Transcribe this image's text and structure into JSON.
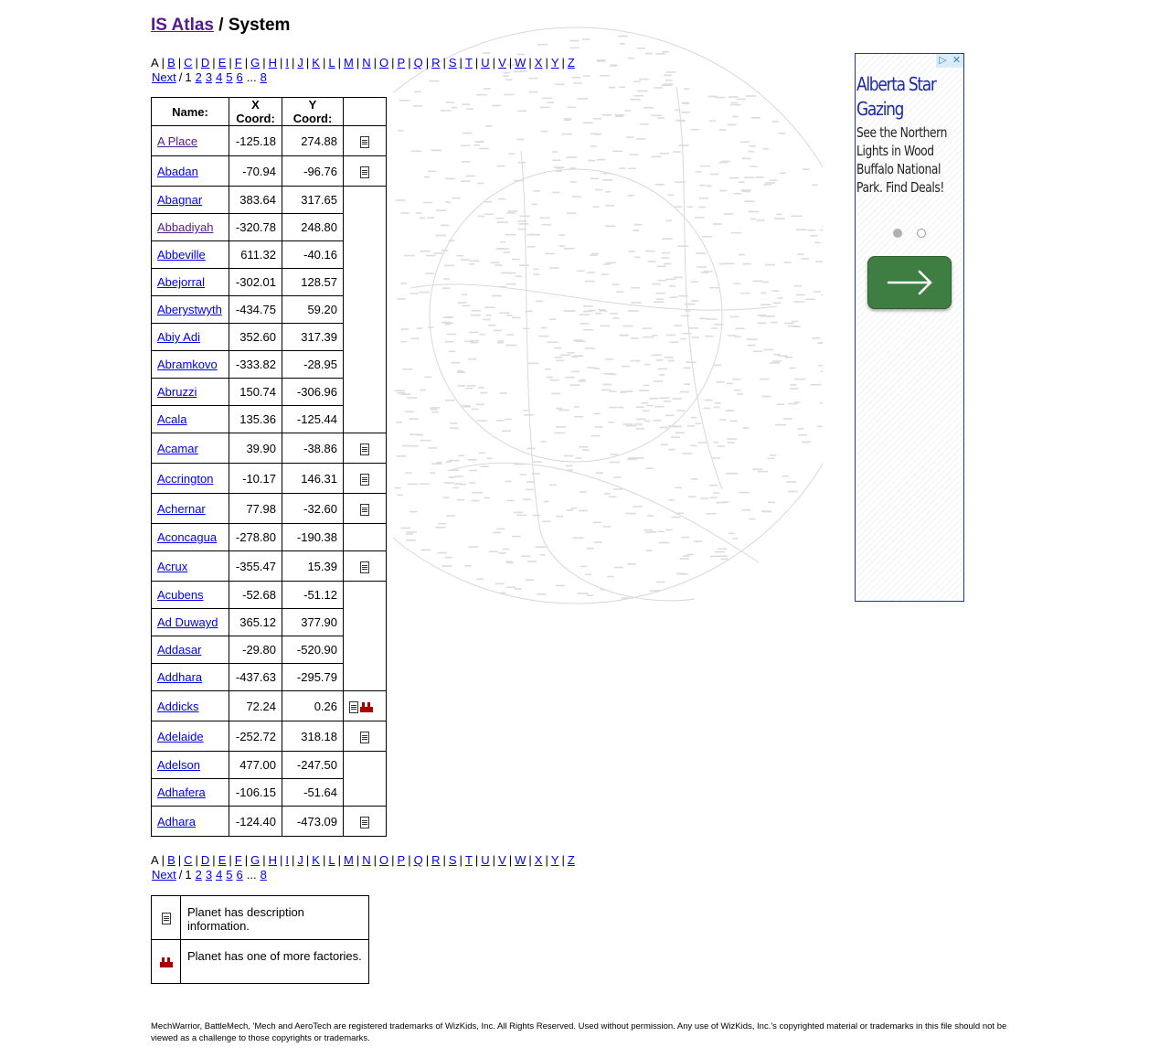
{
  "header": {
    "site_link": "IS Atlas",
    "separator": "/",
    "page": "System"
  },
  "letters": [
    "A",
    "B",
    "C",
    "D",
    "E",
    "F",
    "G",
    "H",
    "I",
    "J",
    "K",
    "L",
    "M",
    "N",
    "O",
    "P",
    "Q",
    "R",
    "S",
    "T",
    "U",
    "V",
    "W",
    "X",
    "Y",
    "Z"
  ],
  "current_letter": "A",
  "pager": {
    "next": "Next",
    "slash": "/",
    "current": "1",
    "pages": [
      "2",
      "3",
      "4",
      "5",
      "6"
    ],
    "ellipsis": "...",
    "last": "8"
  },
  "table": {
    "headers": {
      "name": "Name:",
      "x": "X Coord:",
      "y": "Y Coord:"
    },
    "rows": [
      {
        "name": "A Place",
        "x": "-125.18",
        "y": "274.88",
        "desc": true,
        "factory": false,
        "visited": true
      },
      {
        "name": "Abadan",
        "x": "-70.94",
        "y": "-96.76",
        "desc": true,
        "factory": false
      },
      {
        "name": "Abagnar",
        "x": "383.64",
        "y": "317.65",
        "desc": false,
        "factory": false
      },
      {
        "name": "Abbadiyah",
        "x": "-320.78",
        "y": "248.80",
        "desc": false,
        "factory": false,
        "visited": true
      },
      {
        "name": "Abbeville",
        "x": "611.32",
        "y": "-40.16",
        "desc": false,
        "factory": false
      },
      {
        "name": "Abejorral",
        "x": "-302.01",
        "y": "128.57",
        "desc": false,
        "factory": false
      },
      {
        "name": "Aberystwyth",
        "x": "-434.75",
        "y": "59.20",
        "desc": false,
        "factory": false
      },
      {
        "name": "Abiy Adi",
        "x": "352.60",
        "y": "317.39",
        "desc": false,
        "factory": false
      },
      {
        "name": "Abramkovo",
        "x": "-333.82",
        "y": "-28.95",
        "desc": false,
        "factory": false
      },
      {
        "name": "Abruzzi",
        "x": "150.74",
        "y": "-306.96",
        "desc": false,
        "factory": false
      },
      {
        "name": "Acala",
        "x": "135.36",
        "y": "-125.44",
        "desc": false,
        "factory": false
      },
      {
        "name": "Acamar",
        "x": "39.90",
        "y": "-38.86",
        "desc": true,
        "factory": false
      },
      {
        "name": "Accrington",
        "x": "-10.17",
        "y": "146.31",
        "desc": true,
        "factory": false
      },
      {
        "name": "Achernar",
        "x": "77.98",
        "y": "-32.60",
        "desc": true,
        "factory": false
      },
      {
        "name": "Aconcagua",
        "x": "-278.80",
        "y": "-190.38",
        "desc": false,
        "factory": false
      },
      {
        "name": "Acrux",
        "x": "-355.47",
        "y": "15.39",
        "desc": true,
        "factory": false
      },
      {
        "name": "Acubens",
        "x": "-52.68",
        "y": "-51.12",
        "desc": false,
        "factory": false
      },
      {
        "name": "Ad Duwayd",
        "x": "365.12",
        "y": "377.90",
        "desc": false,
        "factory": false
      },
      {
        "name": "Addasar",
        "x": "-29.80",
        "y": "-520.90",
        "desc": false,
        "factory": false
      },
      {
        "name": "Addhara",
        "x": "-437.63",
        "y": "-295.79",
        "desc": false,
        "factory": false
      },
      {
        "name": "Addicks",
        "x": "72.24",
        "y": "0.26",
        "desc": true,
        "factory": true
      },
      {
        "name": "Adelaide",
        "x": "-252.72",
        "y": "318.18",
        "desc": true,
        "factory": false
      },
      {
        "name": "Adelson",
        "x": "477.00",
        "y": "-247.50",
        "desc": false,
        "factory": false
      },
      {
        "name": "Adhafera",
        "x": "-106.15",
        "y": "-51.64",
        "desc": false,
        "factory": false
      },
      {
        "name": "Adhara",
        "x": "-124.40",
        "y": "-473.09",
        "desc": true,
        "factory": false
      }
    ]
  },
  "legend": {
    "description": "Planet has description information.",
    "factory": "Planet has one of more factories.",
    "description_icon": "document-icon",
    "factory_icon": "factory-icon"
  },
  "ad": {
    "headline": "Alberta Star Gazing",
    "body": "See the Northern Lights in Wood Buffalo National Park. Find Deals!",
    "button_icon": "arrow-right-icon",
    "button_color": "#3f7e43",
    "headline_color": "#1a2aa8"
  },
  "footer": "MechWarrior, BattleMech, 'Mech and AeroTech are registered trademarks of WizKids, Inc. All Rights Reserved. Used without permission. Any use of WizKids, Inc.'s copyrighted material or trademarks in this file should not be viewed as a challenge to those copyrights or trademarks.",
  "colors": {
    "link": "#0000ee",
    "visited_link": "#551a8b",
    "factory_red": "#aa0000"
  }
}
